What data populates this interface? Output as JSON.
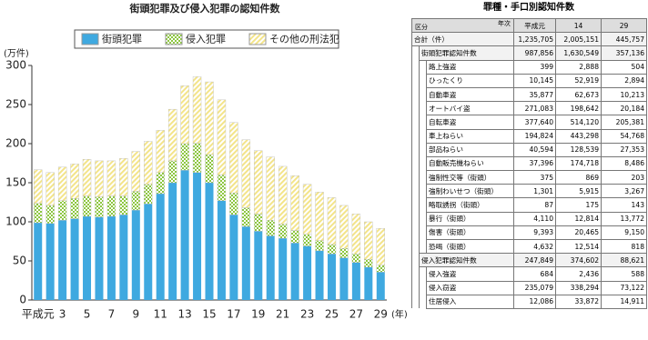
{
  "chart_data": {
    "type": "stacked_bar",
    "title": "街頭犯罪及び侵入犯罪の認知件数",
    "y_label": "(万件)",
    "x_unit": "(年)",
    "categories": [
      "平成元",
      null,
      "3",
      null,
      "5",
      null,
      "7",
      null,
      "9",
      null,
      "11",
      null,
      "13",
      null,
      "15",
      null,
      "17",
      null,
      "19",
      null,
      "21",
      null,
      "23",
      null,
      "25",
      null,
      "27",
      null,
      "29"
    ],
    "series": [
      {
        "name": "街頭犯罪",
        "color": "#3fa9e0",
        "values": [
          98.8,
          98,
          102,
          104,
          107,
          106,
          107,
          109,
          115,
          123,
          136,
          150,
          166,
          163.1,
          150,
          127,
          109,
          94,
          88,
          82,
          79,
          73,
          69,
          63,
          59,
          54,
          48,
          42,
          35.7
        ]
      },
      {
        "name": "侵入犯罪",
        "color": "#8cc63f",
        "values": [
          24.8,
          23,
          25,
          26,
          26,
          26,
          26,
          24,
          24,
          25,
          27,
          28,
          34,
          37.5,
          36,
          33,
          28,
          24,
          22,
          20,
          18,
          16,
          15,
          13,
          12,
          12,
          11,
          10,
          8.9
        ]
      },
      {
        "name": "その他の刑法犯",
        "color": "#f3e48a",
        "values": [
          43,
          42,
          43,
          44,
          47,
          46,
          45,
          48,
          51,
          55,
          54,
          66,
          74,
          85,
          93,
          96,
          90,
          87,
          81,
          81,
          74,
          70,
          64,
          62,
          60,
          55,
          51,
          48,
          47
        ]
      }
    ],
    "ylim": [
      0,
      300
    ],
    "yticks": [
      0,
      50,
      100,
      150,
      200,
      250,
      300
    ]
  },
  "table": {
    "title": "罪種・手口別認知件数",
    "corner_top": "年次",
    "corner_bottom": "区分",
    "columns": [
      "平成元",
      "14",
      "29"
    ],
    "total": {
      "label": "合計（件）",
      "values": [
        "1,235,705",
        "2,005,151",
        "445,757"
      ]
    },
    "groups": [
      {
        "label": "街頭犯罪認知件数",
        "values": [
          "987,856",
          "1,630,549",
          "357,136"
        ],
        "rows": [
          {
            "label": "路上強盗",
            "values": [
              "399",
              "2,888",
              "504"
            ]
          },
          {
            "label": "ひったくり",
            "values": [
              "10,145",
              "52,919",
              "2,894"
            ]
          },
          {
            "label": "自動車盗",
            "values": [
              "35,877",
              "62,673",
              "10,213"
            ]
          },
          {
            "label": "オートバイ盗",
            "values": [
              "271,083",
              "198,642",
              "20,184"
            ]
          },
          {
            "label": "自転車盗",
            "values": [
              "377,640",
              "514,120",
              "205,381"
            ]
          },
          {
            "label": "車上ねらい",
            "values": [
              "194,824",
              "443,298",
              "54,768"
            ]
          },
          {
            "label": "部品ねらい",
            "values": [
              "40,594",
              "128,539",
              "27,353"
            ]
          },
          {
            "label": "自動販売機ねらい",
            "values": [
              "37,396",
              "174,718",
              "8,486"
            ]
          },
          {
            "label": "強制性交等（街頭）",
            "values": [
              "375",
              "869",
              "203"
            ]
          },
          {
            "label": "強制わいせつ（街頭）",
            "values": [
              "1,301",
              "5,915",
              "3,267"
            ]
          },
          {
            "label": "略取誘拐（街頭）",
            "values": [
              "87",
              "175",
              "143"
            ]
          },
          {
            "label": "暴行（街頭）",
            "values": [
              "4,110",
              "12,814",
              "13,772"
            ]
          },
          {
            "label": "傷害（街頭）",
            "values": [
              "9,393",
              "20,465",
              "9,150"
            ]
          },
          {
            "label": "恐喝（街頭）",
            "values": [
              "4,632",
              "12,514",
              "818"
            ]
          }
        ]
      },
      {
        "label": "侵入犯罪認知件数",
        "values": [
          "247,849",
          "374,602",
          "88,621"
        ],
        "rows": [
          {
            "label": "侵入強盗",
            "values": [
              "684",
              "2,436",
              "588"
            ]
          },
          {
            "label": "侵入窃盗",
            "values": [
              "235,079",
              "338,294",
              "73,122"
            ]
          },
          {
            "label": "住居侵入",
            "values": [
              "12,086",
              "33,872",
              "14,911"
            ]
          }
        ]
      }
    ]
  }
}
